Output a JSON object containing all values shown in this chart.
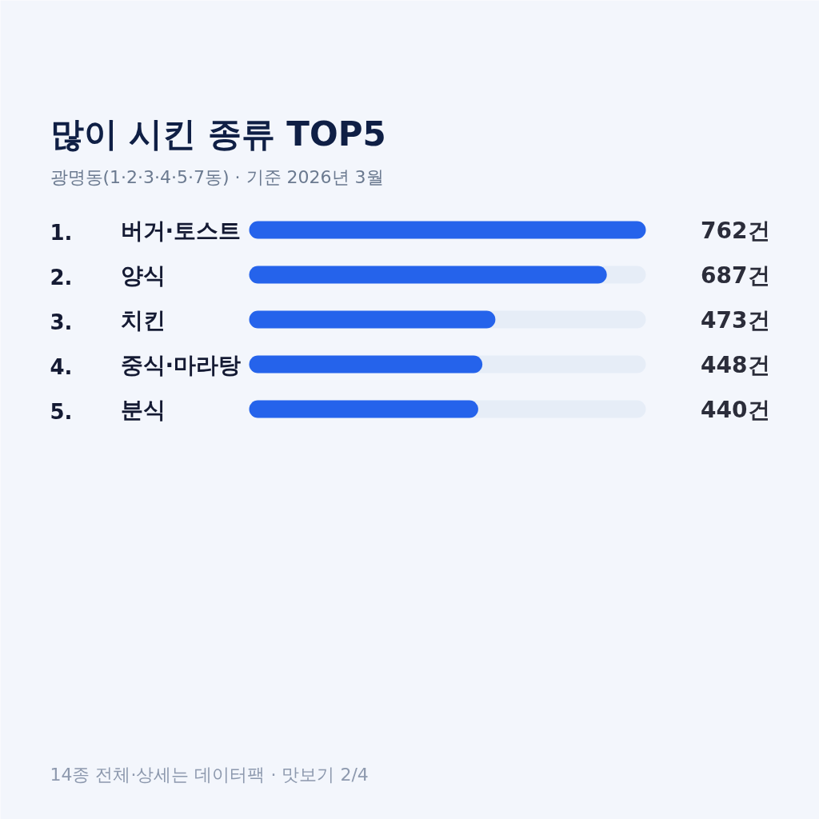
{
  "chart_data": {
    "type": "bar",
    "orientation": "horizontal",
    "title": "많이 시킨 종류 TOP5",
    "subtitle": "광명동(1·2·3·4·5·7동) · 기준 2026년 3월",
    "categories": [
      "1. 버거·토스트",
      "2. 양식",
      "3. 치킨",
      "4. 중식·마라탕",
      "5. 분식"
    ],
    "values": [
      762,
      687,
      473,
      448,
      440
    ],
    "color": "#2563eb",
    "value_labels": [
      "762건",
      "687건",
      "473건",
      "448건",
      "440건"
    ],
    "xlim": [
      0,
      762
    ],
    "tick_labels": false,
    "annotations": [
      "14종 전체·상세는 데이터팩 · 맛보기 2/4"
    ]
  }
}
